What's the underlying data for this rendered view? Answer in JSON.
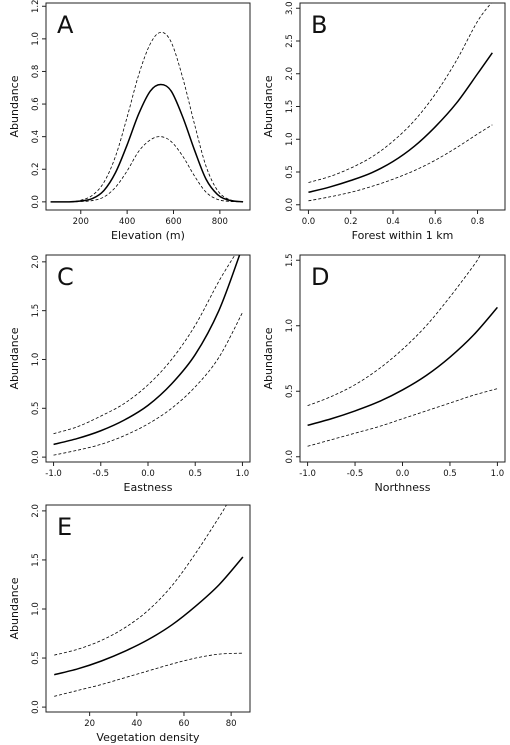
{
  "chart_data": [
    {
      "type": "line",
      "panel_label": "A",
      "xlabel": "Elevation (m)",
      "ylabel": "Abundance",
      "xlim": [
        50,
        930
      ],
      "ylim": [
        -0.05,
        1.22
      ],
      "xticks": [
        200,
        400,
        600,
        800
      ],
      "yticks": [
        0.0,
        0.2,
        0.4,
        0.6,
        0.8,
        1.0,
        1.2
      ],
      "ytick_labels": [
        "0.0",
        "0.2",
        "0.4",
        "0.6",
        "0.8",
        "1.0",
        "1.2"
      ],
      "series": [
        {
          "role": "estimate",
          "style": "solid",
          "x": [
            70,
            150,
            200,
            250,
            300,
            350,
            400,
            450,
            500,
            545,
            590,
            640,
            690,
            740,
            790,
            840,
            900
          ],
          "y": [
            0,
            0,
            0.005,
            0.02,
            0.07,
            0.18,
            0.35,
            0.54,
            0.68,
            0.72,
            0.68,
            0.52,
            0.32,
            0.14,
            0.045,
            0.01,
            0.0
          ]
        },
        {
          "role": "upper",
          "style": "dashed",
          "x": [
            70,
            150,
            200,
            250,
            300,
            350,
            400,
            450,
            500,
            545,
            590,
            640,
            690,
            740,
            790,
            840,
            900
          ],
          "y": [
            0,
            0,
            0.01,
            0.04,
            0.12,
            0.28,
            0.52,
            0.78,
            0.97,
            1.04,
            0.98,
            0.76,
            0.48,
            0.22,
            0.07,
            0.015,
            0.0
          ]
        },
        {
          "role": "lower",
          "style": "dashed",
          "x": [
            70,
            150,
            200,
            250,
            300,
            350,
            400,
            450,
            500,
            545,
            590,
            640,
            690,
            740,
            790,
            840,
            900
          ],
          "y": [
            0,
            0,
            0.002,
            0.008,
            0.03,
            0.09,
            0.19,
            0.31,
            0.38,
            0.4,
            0.37,
            0.28,
            0.16,
            0.06,
            0.015,
            0.003,
            0.0
          ]
        }
      ]
    },
    {
      "type": "line",
      "panel_label": "B",
      "xlabel": "Forest within 1 km",
      "ylabel": "Abundance",
      "xlim": [
        -0.04,
        0.93
      ],
      "ylim": [
        -0.08,
        3.08
      ],
      "xticks": [
        0.0,
        0.2,
        0.4,
        0.6,
        0.8
      ],
      "xtick_labels": [
        "0.0",
        "0.2",
        "0.4",
        "0.6",
        "0.8"
      ],
      "yticks": [
        0.0,
        0.5,
        1.0,
        1.5,
        2.0,
        2.5,
        3.0
      ],
      "ytick_labels": [
        "0.0",
        "0.5",
        "1.0",
        "1.5",
        "2.0",
        "2.5",
        "3.0"
      ],
      "series": [
        {
          "role": "estimate",
          "style": "solid",
          "x": [
            0,
            0.1,
            0.2,
            0.3,
            0.4,
            0.5,
            0.6,
            0.7,
            0.8,
            0.87
          ],
          "y": [
            0.19,
            0.27,
            0.37,
            0.49,
            0.66,
            0.89,
            1.19,
            1.55,
            2.0,
            2.32
          ]
        },
        {
          "role": "upper",
          "style": "dashed",
          "x": [
            0,
            0.1,
            0.2,
            0.3,
            0.4,
            0.5,
            0.6,
            0.7,
            0.8,
            0.87
          ],
          "y": [
            0.34,
            0.43,
            0.56,
            0.73,
            0.97,
            1.28,
            1.69,
            2.2,
            2.8,
            3.1
          ]
        },
        {
          "role": "lower",
          "style": "dashed",
          "x": [
            0,
            0.1,
            0.2,
            0.3,
            0.4,
            0.5,
            0.6,
            0.7,
            0.8,
            0.87
          ],
          "y": [
            0.06,
            0.12,
            0.19,
            0.28,
            0.39,
            0.52,
            0.68,
            0.87,
            1.08,
            1.22
          ]
        }
      ]
    },
    {
      "type": "line",
      "panel_label": "C",
      "xlabel": "Eastness",
      "ylabel": "Abundance",
      "xlim": [
        -1.08,
        1.08
      ],
      "ylim": [
        -0.05,
        2.07
      ],
      "xticks": [
        -1.0,
        -0.5,
        0.0,
        0.5,
        1.0
      ],
      "xtick_labels": [
        "-1.0",
        "-0.5",
        "0.0",
        "0.5",
        "1.0"
      ],
      "yticks": [
        0.0,
        0.5,
        1.0,
        1.5,
        2.0
      ],
      "ytick_labels": [
        "0.0",
        "0.5",
        "1.0",
        "1.5",
        "2.0"
      ],
      "series": [
        {
          "role": "estimate",
          "style": "solid",
          "x": [
            -1.0,
            -0.75,
            -0.5,
            -0.25,
            0.0,
            0.25,
            0.5,
            0.75,
            0.97
          ],
          "y": [
            0.13,
            0.19,
            0.27,
            0.38,
            0.53,
            0.75,
            1.05,
            1.5,
            2.07
          ]
        },
        {
          "role": "upper",
          "style": "dashed",
          "x": [
            -1.0,
            -0.75,
            -0.5,
            -0.25,
            0.0,
            0.25,
            0.5,
            0.75,
            0.92
          ],
          "y": [
            0.24,
            0.31,
            0.42,
            0.55,
            0.74,
            1.0,
            1.35,
            1.8,
            2.07
          ]
        },
        {
          "role": "lower",
          "style": "dashed",
          "x": [
            -1.0,
            -0.75,
            -0.5,
            -0.25,
            0.0,
            0.25,
            0.5,
            0.75,
            1.0
          ],
          "y": [
            0.02,
            0.07,
            0.13,
            0.22,
            0.34,
            0.5,
            0.72,
            1.02,
            1.48
          ]
        }
      ]
    },
    {
      "type": "line",
      "panel_label": "D",
      "xlabel": "Northness",
      "ylabel": "Abundance",
      "xlim": [
        -1.08,
        1.08
      ],
      "ylim": [
        -0.04,
        1.54
      ],
      "xticks": [
        -1.0,
        -0.5,
        0.0,
        0.5,
        1.0
      ],
      "xtick_labels": [
        "-1.0",
        "-0.5",
        "0.0",
        "0.5",
        "1.0"
      ],
      "yticks": [
        0.0,
        0.5,
        1.0,
        1.5
      ],
      "ytick_labels": [
        "0.0",
        "0.5",
        "1.0",
        "1.5"
      ],
      "series": [
        {
          "role": "estimate",
          "style": "solid",
          "x": [
            -1.0,
            -0.75,
            -0.5,
            -0.25,
            0.0,
            0.25,
            0.5,
            0.75,
            1.0
          ],
          "y": [
            0.24,
            0.29,
            0.35,
            0.42,
            0.51,
            0.62,
            0.76,
            0.93,
            1.14
          ]
        },
        {
          "role": "upper",
          "style": "dashed",
          "x": [
            -1.0,
            -0.75,
            -0.5,
            -0.25,
            0.0,
            0.25,
            0.5,
            0.75,
            0.82
          ],
          "y": [
            0.39,
            0.46,
            0.55,
            0.67,
            0.82,
            1.0,
            1.22,
            1.46,
            1.54
          ]
        },
        {
          "role": "lower",
          "style": "dashed",
          "x": [
            -1.0,
            -0.75,
            -0.5,
            -0.25,
            0.0,
            0.25,
            0.5,
            0.75,
            1.0
          ],
          "y": [
            0.08,
            0.13,
            0.18,
            0.23,
            0.29,
            0.35,
            0.41,
            0.47,
            0.52
          ]
        }
      ]
    },
    {
      "type": "line",
      "panel_label": "E",
      "xlabel": "Vegetation density",
      "ylabel": "Abundance",
      "xlim": [
        1.5,
        88
      ],
      "ylim": [
        -0.05,
        2.06
      ],
      "xticks": [
        20,
        40,
        60,
        80
      ],
      "yticks": [
        0.0,
        0.5,
        1.0,
        1.5,
        2.0
      ],
      "ytick_labels": [
        "0.0",
        "0.5",
        "1.0",
        "1.5",
        "2.0"
      ],
      "series": [
        {
          "role": "estimate",
          "style": "solid",
          "x": [
            5,
            15,
            25,
            35,
            45,
            55,
            65,
            75,
            85
          ],
          "y": [
            0.33,
            0.39,
            0.47,
            0.57,
            0.69,
            0.84,
            1.03,
            1.25,
            1.53
          ]
        },
        {
          "role": "upper",
          "style": "dashed",
          "x": [
            5,
            15,
            25,
            35,
            45,
            55,
            65,
            75,
            78
          ],
          "y": [
            0.53,
            0.59,
            0.68,
            0.81,
            0.99,
            1.24,
            1.57,
            1.94,
            2.06
          ]
        },
        {
          "role": "lower",
          "style": "dashed",
          "x": [
            5,
            15,
            25,
            35,
            45,
            55,
            65,
            75,
            85
          ],
          "y": [
            0.11,
            0.17,
            0.23,
            0.3,
            0.37,
            0.44,
            0.5,
            0.54,
            0.55
          ]
        }
      ]
    }
  ]
}
